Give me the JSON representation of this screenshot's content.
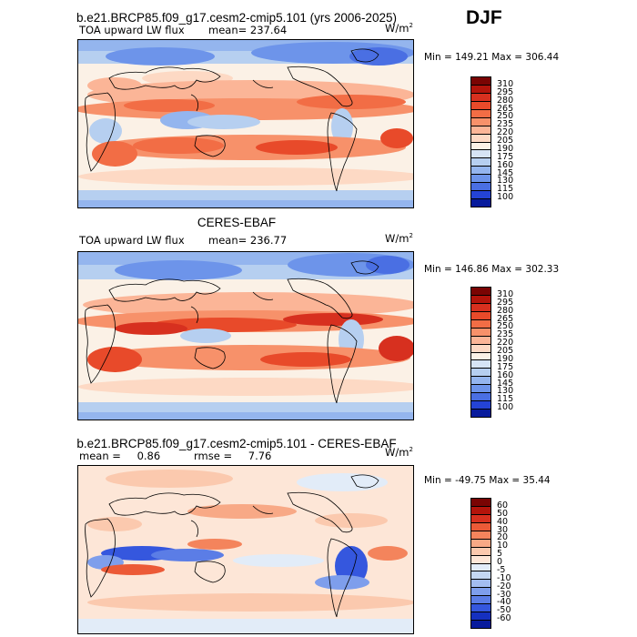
{
  "season": "DJF",
  "panels": [
    {
      "title": "b.e21.BRCP85.f09_g17.cesm2-cmip5.101 (yrs 2006-2025)",
      "variable": "TOA upward LW flux",
      "mean_label": "mean=",
      "mean_value": "237.64",
      "units_base": "W/m",
      "units_sup": "2",
      "min_label": "Min =",
      "min_value": "149.21",
      "max_label": "Max =",
      "max_value": "306.44"
    },
    {
      "title": "CERES-EBAF",
      "variable": "TOA upward LW flux",
      "mean_label": "mean=",
      "mean_value": "236.77",
      "units_base": "W/m",
      "units_sup": "2",
      "min_label": "Min =",
      "min_value": "146.86",
      "max_label": "Max =",
      "max_value": "302.33"
    },
    {
      "title": "b.e21.BRCP85.f09_g17.cesm2-cmip5.101 - CERES-EBAF",
      "mean_label": "mean =",
      "mean_value": "0.86",
      "rmse_label": "rmse =",
      "rmse_value": "7.76",
      "units_base": "W/m",
      "units_sup": "2",
      "min_label": "Min =",
      "min_value": "-49.75",
      "max_label": "Max =",
      "max_value": "35.44"
    }
  ],
  "chart_data": [
    {
      "type": "heatmap",
      "title": "b.e21.BRCP85.f09_g17.cesm2-cmip5.101 (yrs 2006-2025)",
      "variable": "TOA upward LW flux",
      "units": "W/m2",
      "mean": 237.64,
      "min": 149.21,
      "max": 306.44,
      "colorbar_levels": [
        310,
        295,
        280,
        265,
        250,
        235,
        220,
        205,
        190,
        175,
        160,
        145,
        130,
        115,
        100
      ]
    },
    {
      "type": "heatmap",
      "title": "CERES-EBAF",
      "variable": "TOA upward LW flux",
      "units": "W/m2",
      "mean": 236.77,
      "min": 146.86,
      "max": 302.33,
      "colorbar_levels": [
        310,
        295,
        280,
        265,
        250,
        235,
        220,
        205,
        190,
        175,
        160,
        145,
        130,
        115,
        100
      ]
    },
    {
      "type": "heatmap",
      "title": "b.e21.BRCP85.f09_g17.cesm2-cmip5.101 - CERES-EBAF",
      "units": "W/m2",
      "mean": 0.86,
      "rmse": 7.76,
      "min": -49.75,
      "max": 35.44,
      "colorbar_levels": [
        60,
        50,
        40,
        30,
        20,
        10,
        5,
        0,
        -5,
        -10,
        -20,
        -30,
        -40,
        -50,
        -60
      ]
    }
  ],
  "colorbar_fill": {
    "abs": [
      "#7a0403",
      "#b3140b",
      "#d7301f",
      "#e84a2a",
      "#f26d45",
      "#f7916a",
      "#fbb597",
      "#fdd9c4",
      "#fbf1e6",
      "#d6e4f5",
      "#b6cff0",
      "#94b5ee",
      "#6d94ea",
      "#4a6fe3",
      "#2443d6",
      "#081b9c"
    ],
    "diff": [
      "#7a0403",
      "#b3140b",
      "#d7301f",
      "#ec5a37",
      "#f4845c",
      "#f8a986",
      "#fbc9ae",
      "#fde6d7",
      "#e2ecf8",
      "#c4d7f3",
      "#a3bdf0",
      "#7e9eec",
      "#5b7de6",
      "#3557de",
      "#1530c0",
      "#081b9c"
    ]
  }
}
